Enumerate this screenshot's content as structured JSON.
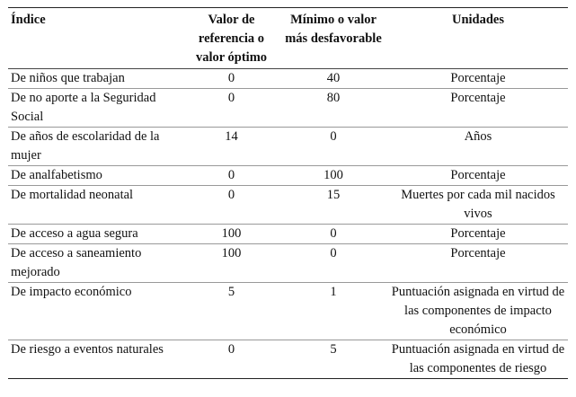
{
  "table": {
    "header": [
      "Índice",
      "Valor de referencia o valor óptimo",
      "Mínimo o valor más desfavorable",
      "Unidades"
    ],
    "rows": [
      [
        "De niños que trabajan",
        0,
        40,
        "Porcentaje"
      ],
      [
        "De no aporte a la Seguridad Social",
        0,
        80,
        "Porcentaje"
      ],
      [
        "De años de escolaridad de la mujer",
        14,
        0,
        "Años"
      ],
      [
        "De analfabetismo",
        0,
        100,
        "Porcentaje"
      ],
      [
        "De mortalidad neonatal",
        0,
        15,
        "Muertes por cada mil nacidos vivos"
      ],
      [
        "De acceso a agua segura",
        100,
        0,
        "Porcentaje"
      ],
      [
        "De acceso a saneamiento mejorado",
        100,
        0,
        "Porcentaje"
      ],
      [
        "De impacto económico",
        5,
        1,
        "Puntuación asignada en virtud de las componentes de impacto económico"
      ],
      [
        "De riesgo a eventos naturales",
        0,
        5,
        "Puntuación asignada en virtud de las componentes de riesgo"
      ]
    ]
  }
}
